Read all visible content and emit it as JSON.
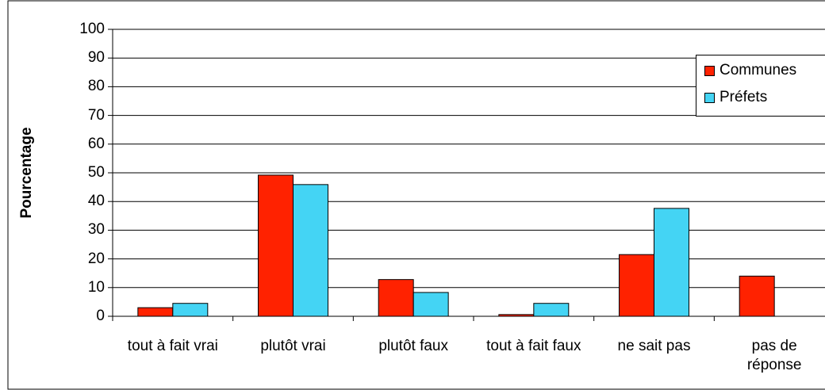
{
  "chart_data": {
    "type": "bar",
    "y_label": "Pourcentage",
    "categories": [
      "tout à fait vrai",
      "plutôt vrai",
      "plutôt faux",
      "tout à fait faux",
      "ne sait pas",
      "pas de réponse"
    ],
    "series": [
      {
        "name": "Communes",
        "color": "#ff2200",
        "values": [
          3,
          49.2,
          12.8,
          0.6,
          21.5,
          14
        ]
      },
      {
        "name": "Préfets",
        "color": "#44d4f4",
        "values": [
          4.5,
          45.9,
          8.3,
          4.5,
          37.6,
          0
        ]
      }
    ],
    "ylim": [
      0,
      100
    ],
    "yticks": [
      0,
      10,
      20,
      30,
      40,
      50,
      60,
      70,
      80,
      90,
      100
    ],
    "grid": true,
    "legend": "right"
  }
}
